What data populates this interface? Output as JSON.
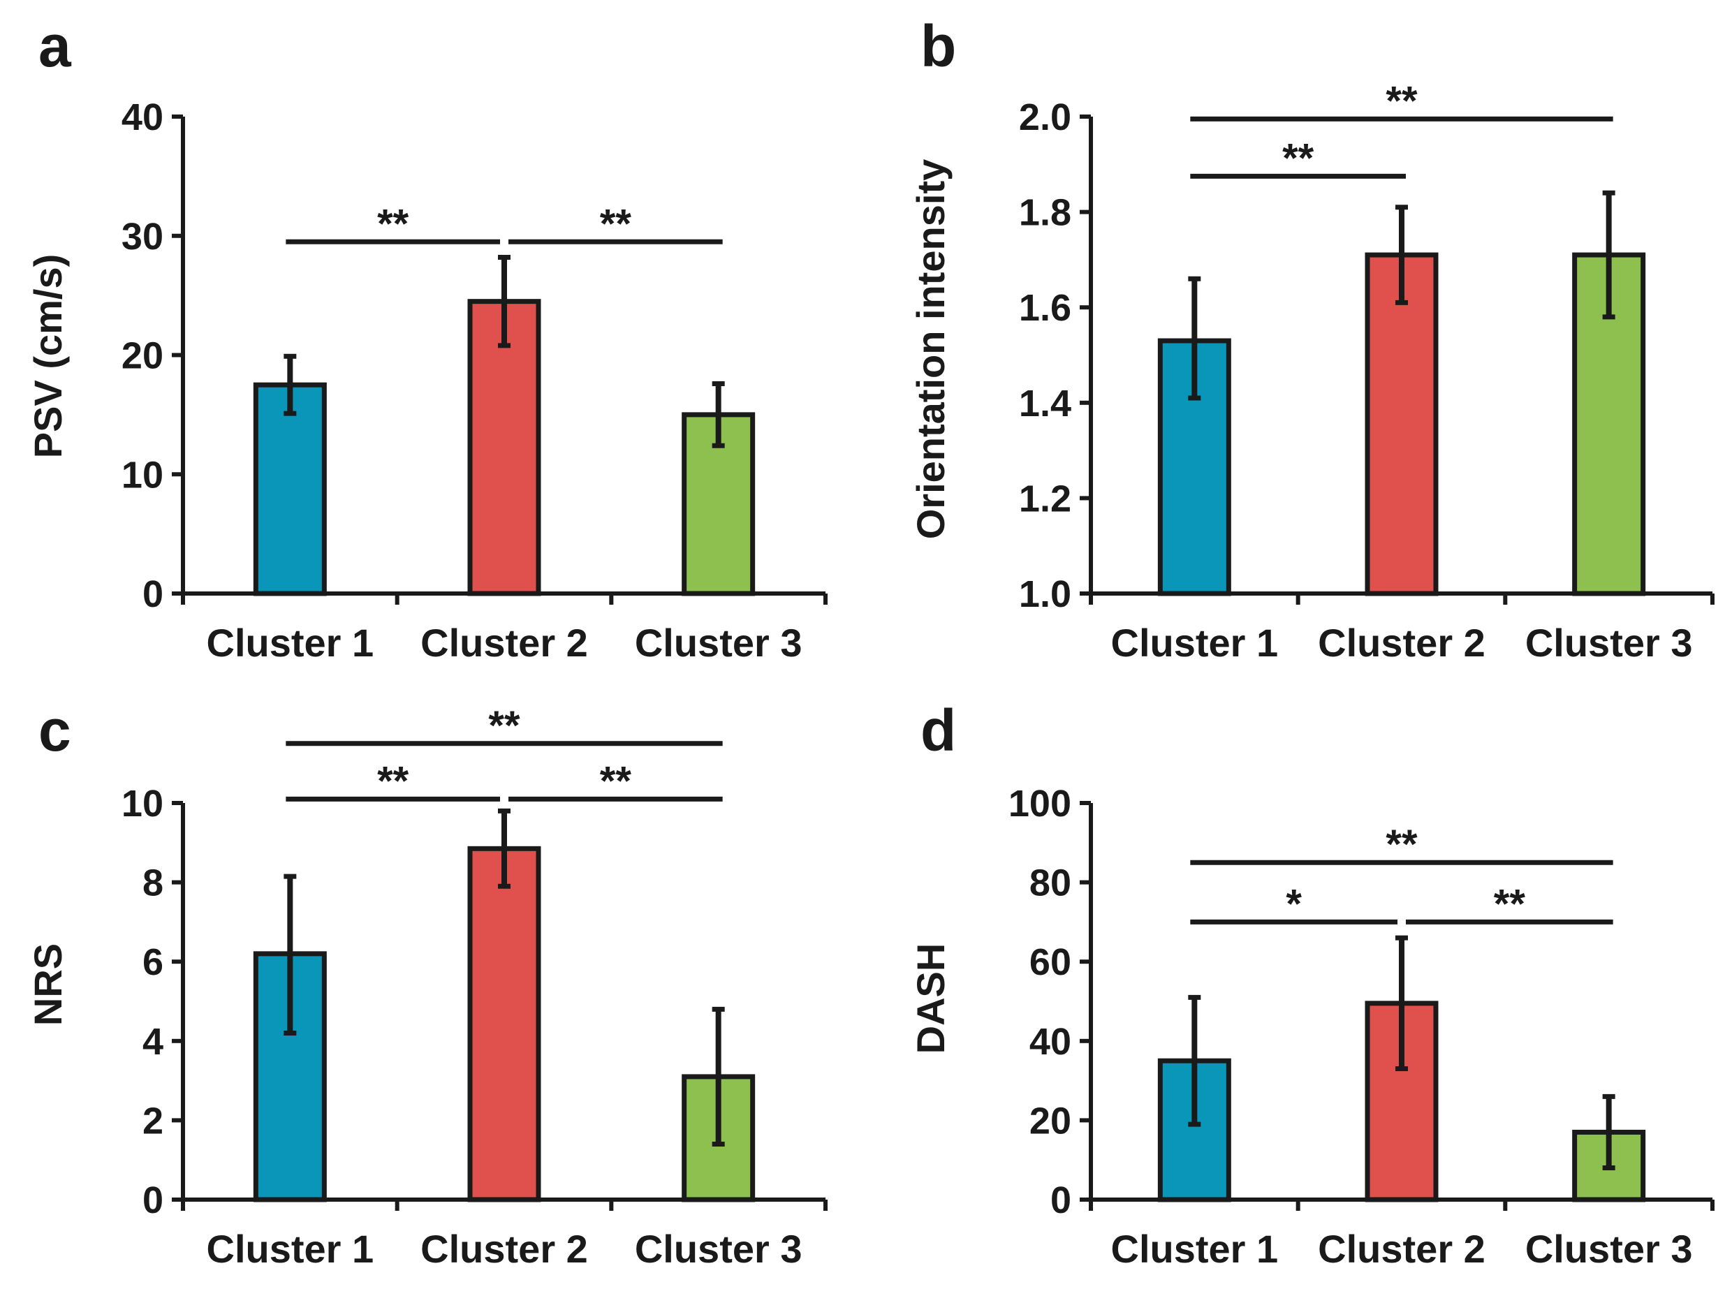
{
  "colors": {
    "cluster1": "#0a96b8",
    "cluster2": "#e0504d",
    "cluster3": "#8dc04f",
    "ink": "#1a1a1a"
  },
  "chart_data": [
    {
      "panel": "a",
      "type": "bar",
      "categories": [
        "Cluster 1",
        "Cluster 2",
        "Cluster 3"
      ],
      "values": [
        17.5,
        24.5,
        15.0
      ],
      "error": [
        {
          "low": 15.1,
          "high": 19.9
        },
        {
          "low": 20.8,
          "high": 28.2
        },
        {
          "low": 12.4,
          "high": 17.6
        }
      ],
      "ylabel": "PSV (cm/s)",
      "ylim": [
        0,
        40
      ],
      "yticks": [
        "0",
        "10",
        "20",
        "30",
        "40"
      ],
      "significance": [
        {
          "from": 0,
          "to": 1,
          "label": "**",
          "level": 29.5
        },
        {
          "from": 1,
          "to": 2,
          "label": "**",
          "level": 29.5
        }
      ]
    },
    {
      "panel": "b",
      "type": "bar",
      "categories": [
        "Cluster 1",
        "Cluster 2",
        "Cluster 3"
      ],
      "values": [
        1.53,
        1.71,
        1.71
      ],
      "error": [
        {
          "low": 1.41,
          "high": 1.66
        },
        {
          "low": 1.61,
          "high": 1.81
        },
        {
          "low": 1.58,
          "high": 1.84
        }
      ],
      "ylabel": "Orientation intensity",
      "ylim": [
        1.0,
        2.0
      ],
      "yticks": [
        "1.0",
        "1.2",
        "1.4",
        "1.6",
        "1.8",
        "2.0"
      ],
      "significance": [
        {
          "from": 0,
          "to": 1,
          "label": "**",
          "level": 1.875
        },
        {
          "from": 0,
          "to": 2,
          "label": "**",
          "level": 1.995
        }
      ]
    },
    {
      "panel": "c",
      "type": "bar",
      "categories": [
        "Cluster 1",
        "Cluster 2",
        "Cluster 3"
      ],
      "values": [
        6.2,
        8.85,
        3.1
      ],
      "error": [
        {
          "low": 4.2,
          "high": 8.15
        },
        {
          "low": 7.9,
          "high": 9.8
        },
        {
          "low": 1.4,
          "high": 4.8
        }
      ],
      "ylabel": "NRS",
      "ylim": [
        0,
        10
      ],
      "yticks": [
        "0",
        "2",
        "4",
        "6",
        "8",
        "10"
      ],
      "significance": [
        {
          "from": 0,
          "to": 1,
          "label": "**",
          "level": 10.1
        },
        {
          "from": 1,
          "to": 2,
          "label": "**",
          "level": 10.1
        },
        {
          "from": 0,
          "to": 2,
          "label": "**",
          "level": 11.5
        }
      ]
    },
    {
      "panel": "d",
      "type": "bar",
      "categories": [
        "Cluster 1",
        "Cluster 2",
        "Cluster 3"
      ],
      "values": [
        35,
        49.5,
        17
      ],
      "error": [
        {
          "low": 19,
          "high": 51
        },
        {
          "low": 33,
          "high": 66
        },
        {
          "low": 8,
          "high": 26
        }
      ],
      "ylabel": "DASH",
      "ylim": [
        0,
        100
      ],
      "yticks": [
        "0",
        "20",
        "40",
        "60",
        "80",
        "100"
      ],
      "significance": [
        {
          "from": 0,
          "to": 1,
          "label": "*",
          "level": 70
        },
        {
          "from": 1,
          "to": 2,
          "label": "**",
          "level": 70
        },
        {
          "from": 0,
          "to": 2,
          "label": "**",
          "level": 85
        }
      ]
    }
  ]
}
